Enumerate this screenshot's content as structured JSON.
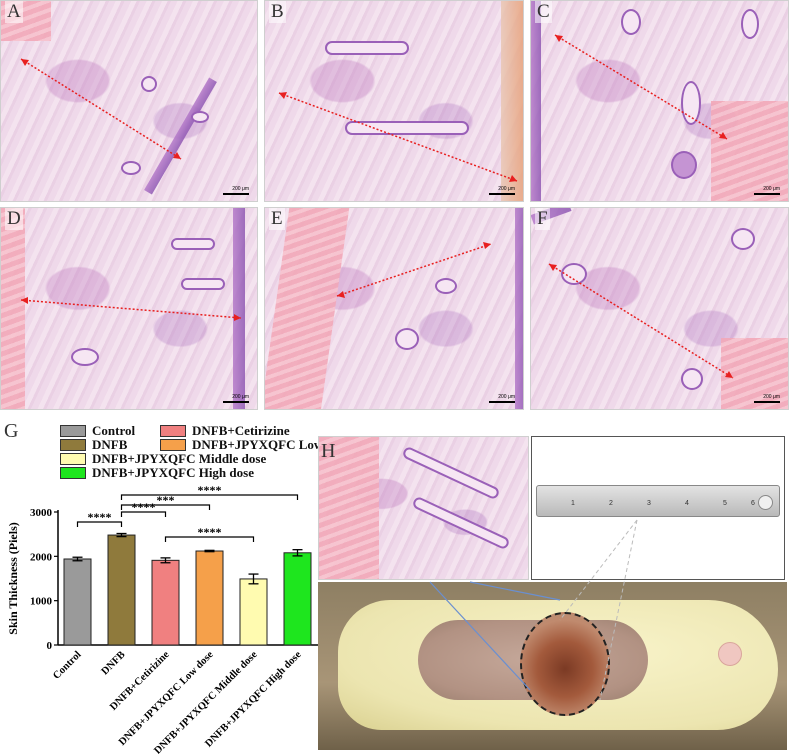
{
  "panels": {
    "a": "A",
    "b": "B",
    "c": "C",
    "d": "D",
    "e": "E",
    "f": "F",
    "g": "G",
    "h": "H"
  },
  "scale_bar_text": "200 μm",
  "colors": {
    "arrow": "#e82020",
    "control": "#9a9a9a",
    "dnfb": "#8f7a3c",
    "cetirizine": "#f08080",
    "low": "#f5a04a",
    "middle": "#fffbb0",
    "high": "#1ee61e"
  },
  "ruler": {
    "numbers": [
      "1",
      "2",
      "3",
      "4",
      "5",
      "6"
    ]
  },
  "chart_data": {
    "type": "bar",
    "title": "",
    "ylabel": "Skin Thickness (Piels)",
    "xlabel": "",
    "ylim": [
      0,
      3000
    ],
    "yticks": [
      "0",
      "1000",
      "2000",
      "3000"
    ],
    "categories": [
      "Control",
      "DNFB",
      "DNFB+Cetirizine",
      "DNFB+JPYXQFC Low dose",
      "DNFB+JPYXQFC Middle dose",
      "DNFB+JPYXQFC High dose"
    ],
    "values": [
      1940,
      2480,
      1910,
      2120,
      1490,
      2080
    ],
    "errors": [
      40,
      35,
      55,
      15,
      110,
      70
    ],
    "legend": [
      "Control",
      "DNFB+Cetirizine",
      "DNFB",
      "DNFB+JPYXQFC Low dose",
      "DNFB+JPYXQFC Middle dose",
      "DNFB+JPYXQFC High dose"
    ],
    "significance": [
      {
        "from": 0,
        "to": 1,
        "label": "****"
      },
      {
        "from": 1,
        "to": 2,
        "label": "****"
      },
      {
        "from": 1,
        "to": 3,
        "label": "***"
      },
      {
        "from": 1,
        "to": 5,
        "label": "****"
      },
      {
        "from": 2,
        "to": 4,
        "label": "****"
      }
    ]
  }
}
